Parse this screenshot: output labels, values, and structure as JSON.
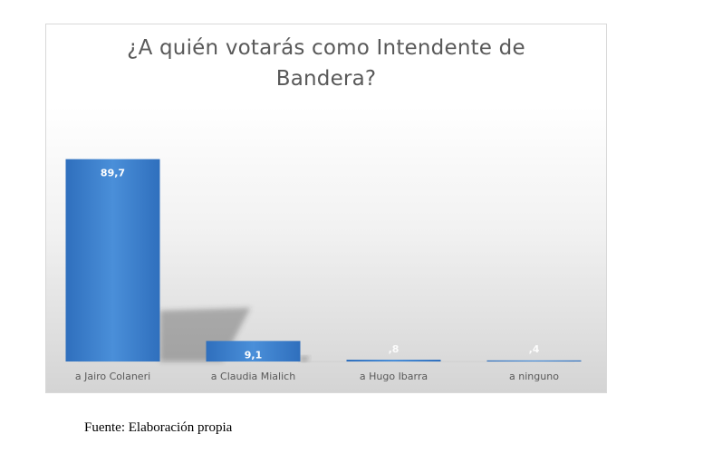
{
  "chart_data": {
    "type": "bar",
    "title": "¿A quién votarás como Intendente de Bandera?",
    "categories": [
      "a Jairo Colaneri",
      "a Claudia Mialich",
      "a Hugo Ibarra",
      "a ninguno"
    ],
    "values": [
      89.7,
      9.1,
      0.8,
      0.4
    ],
    "data_labels": [
      "89,7",
      "9,1",
      ",8",
      ",4"
    ],
    "ylim": [
      0,
      100
    ],
    "grid": false,
    "legend": "none",
    "bar_color": "#4a8fd9",
    "bar_color_dark": "#2f6fbd"
  },
  "source_note": "Fuente: Elaboración propia"
}
